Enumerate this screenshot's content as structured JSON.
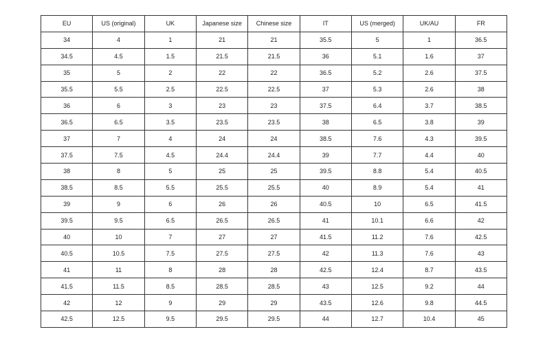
{
  "table": {
    "headers": [
      "EU",
      "US (original)",
      "UK",
      "Japanese size",
      "Chinese size",
      "IT",
      "US (merged)",
      "UK/AU",
      "FR"
    ],
    "rows": [
      [
        "34",
        "4",
        "1",
        "21",
        "21",
        "35.5",
        "5",
        "1",
        "36.5"
      ],
      [
        "34.5",
        "4.5",
        "1.5",
        "21.5",
        "21.5",
        "36",
        "5.1",
        "1.6",
        "37"
      ],
      [
        "35",
        "5",
        "2",
        "22",
        "22",
        "36.5",
        "5.2",
        "2.6",
        "37.5"
      ],
      [
        "35.5",
        "5.5",
        "2.5",
        "22.5",
        "22.5",
        "37",
        "5.3",
        "2.6",
        "38"
      ],
      [
        "36",
        "6",
        "3",
        "23",
        "23",
        "37.5",
        "6.4",
        "3.7",
        "38.5"
      ],
      [
        "36.5",
        "6.5",
        "3.5",
        "23.5",
        "23.5",
        "38",
        "6.5",
        "3.8",
        "39"
      ],
      [
        "37",
        "7",
        "4",
        "24",
        "24",
        "38.5",
        "7.6",
        "4.3",
        "39.5"
      ],
      [
        "37.5",
        "7.5",
        "4.5",
        "24.4",
        "24.4",
        "39",
        "7.7",
        "4.4",
        "40"
      ],
      [
        "38",
        "8",
        "5",
        "25",
        "25",
        "39.5",
        "8.8",
        "5.4",
        "40.5"
      ],
      [
        "38.5",
        "8.5",
        "5.5",
        "25.5",
        "25.5",
        "40",
        "8.9",
        "5.4",
        "41"
      ],
      [
        "39",
        "9",
        "6",
        "26",
        "26",
        "40.5",
        "10",
        "6.5",
        "41.5"
      ],
      [
        "39.5",
        "9.5",
        "6.5",
        "26.5",
        "26.5",
        "41",
        "10.1",
        "6.6",
        "42"
      ],
      [
        "40",
        "10",
        "7",
        "27",
        "27",
        "41.5",
        "11.2",
        "7.6",
        "42.5"
      ],
      [
        "40.5",
        "10.5",
        "7.5",
        "27.5",
        "27.5",
        "42",
        "11.3",
        "7.6",
        "43"
      ],
      [
        "41",
        "11",
        "8",
        "28",
        "28",
        "42.5",
        "12.4",
        "8.7",
        "43.5"
      ],
      [
        "41.5",
        "11.5",
        "8.5",
        "28.5",
        "28.5",
        "43",
        "12.5",
        "9.2",
        "44"
      ],
      [
        "42",
        "12",
        "9",
        "29",
        "29",
        "43.5",
        "12.6",
        "9.8",
        "44.5"
      ],
      [
        "42.5",
        "12.5",
        "9.5",
        "29.5",
        "29.5",
        "44",
        "12.7",
        "10.4",
        "45"
      ]
    ]
  }
}
